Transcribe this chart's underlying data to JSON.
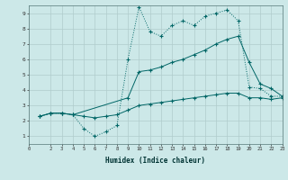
{
  "bg_color": "#cce8e8",
  "grid_color": "#b0cccc",
  "line_color": "#006666",
  "xlabel": "Humidex (Indice chaleur)",
  "xlim": [
    0,
    23
  ],
  "ylim": [
    0.5,
    9.5
  ],
  "xticks": [
    0,
    2,
    3,
    4,
    5,
    6,
    7,
    8,
    9,
    10,
    11,
    12,
    13,
    14,
    15,
    16,
    17,
    18,
    19,
    20,
    21,
    22,
    23
  ],
  "yticks": [
    1,
    2,
    3,
    4,
    5,
    6,
    7,
    8,
    9
  ],
  "line1_x": [
    1,
    2,
    3,
    4,
    5,
    6,
    7,
    8,
    9,
    10,
    11,
    12,
    13,
    14,
    15,
    16,
    17,
    18,
    19,
    20,
    21,
    22,
    23
  ],
  "line1_y": [
    2.3,
    2.5,
    2.5,
    2.4,
    1.5,
    1.0,
    1.3,
    1.7,
    6.0,
    9.4,
    7.8,
    7.5,
    8.2,
    8.5,
    8.2,
    8.8,
    9.0,
    9.2,
    8.5,
    4.2,
    4.1,
    3.6,
    3.6
  ],
  "line2_x": [
    1,
    2,
    3,
    4,
    9,
    10,
    11,
    12,
    13,
    14,
    15,
    16,
    17,
    18,
    19,
    20,
    21,
    22,
    23
  ],
  "line2_y": [
    2.3,
    2.5,
    2.5,
    2.4,
    3.5,
    5.2,
    5.3,
    5.5,
    5.8,
    6.0,
    6.3,
    6.6,
    7.0,
    7.3,
    7.5,
    5.8,
    4.4,
    4.1,
    3.6
  ],
  "line3_x": [
    1,
    2,
    3,
    4,
    5,
    6,
    7,
    8,
    9,
    10,
    11,
    12,
    13,
    14,
    15,
    16,
    17,
    18,
    19,
    20,
    21,
    22,
    23
  ],
  "line3_y": [
    2.3,
    2.5,
    2.5,
    2.4,
    2.3,
    2.2,
    2.3,
    2.4,
    2.7,
    3.0,
    3.1,
    3.2,
    3.3,
    3.4,
    3.5,
    3.6,
    3.7,
    3.8,
    3.8,
    3.5,
    3.5,
    3.4,
    3.5
  ]
}
